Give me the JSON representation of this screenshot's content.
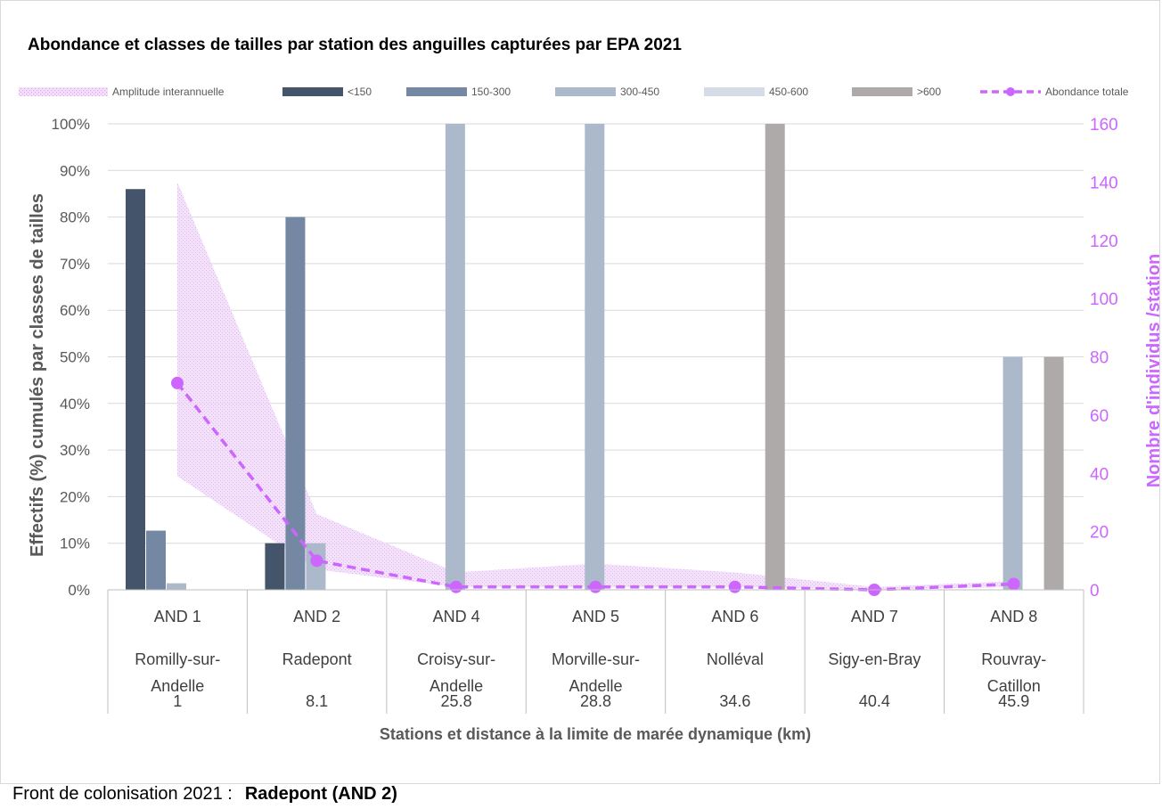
{
  "chart_data": {
    "type": "bar",
    "title": "Abondance et classes de tailles par station des anguilles capturées par EPA 2021",
    "xlabel": "Stations et distance à la limite de marée dynamique (km)",
    "ylabel_left": "Effectifs (%) cumulés par classes de tailles",
    "ylabel_right": "Nombre d'individus /station",
    "ylim_left": [
      0,
      100
    ],
    "ylim_right": [
      0,
      160
    ],
    "left_ticks": [
      "0%",
      "10%",
      "20%",
      "30%",
      "40%",
      "50%",
      "60%",
      "70%",
      "80%",
      "90%",
      "100%"
    ],
    "right_ticks": [
      "0",
      "20",
      "40",
      "60",
      "80",
      "100",
      "120",
      "140",
      "160"
    ],
    "grid": true,
    "legend_position": "top",
    "legend": [
      {
        "label": "Amplitude interannuelle",
        "kind": "area",
        "color": "#e9c6f5"
      },
      {
        "label": "<150",
        "kind": "bar",
        "color": "#44546a"
      },
      {
        "label": "150-300",
        "kind": "bar",
        "color": "#7588a3"
      },
      {
        "label": "300-450",
        "kind": "bar",
        "color": "#acb9ca"
      },
      {
        "label": "450-600",
        "kind": "bar",
        "color": "#d6dce5"
      },
      {
        "label": ">600",
        "kind": "bar",
        "color": "#aeaaaa"
      },
      {
        "label": "Abondance totale",
        "kind": "line",
        "color": "#cc66ff"
      }
    ],
    "categories": [
      {
        "code": "AND 1",
        "name": [
          "Romilly-sur-",
          "Andelle"
        ],
        "distance": "1"
      },
      {
        "code": "AND 2",
        "name": [
          "Radepont"
        ],
        "distance": "8.1"
      },
      {
        "code": "AND 4",
        "name": [
          "Croisy-sur-",
          "Andelle"
        ],
        "distance": "25.8"
      },
      {
        "code": "AND 5",
        "name": [
          "Morville-sur-",
          "Andelle"
        ],
        "distance": "28.8"
      },
      {
        "code": "AND 6",
        "name": [
          "Nolléval"
        ],
        "distance": "34.6"
      },
      {
        "code": "AND 7",
        "name": [
          "Sigy-en-Bray"
        ],
        "distance": "40.4"
      },
      {
        "code": "AND 8",
        "name": [
          "Rouvray-",
          "Catillon"
        ],
        "distance": "45.9"
      }
    ],
    "series": [
      {
        "name": "<150",
        "color": "#44546a",
        "values": [
          86,
          10,
          0,
          0,
          0,
          0,
          0
        ]
      },
      {
        "name": "150-300",
        "color": "#7588a3",
        "values": [
          12.7,
          80,
          0,
          0,
          0,
          0,
          0
        ]
      },
      {
        "name": "300-450",
        "color": "#acb9ca",
        "values": [
          1.4,
          10,
          100,
          100,
          0,
          0,
          50
        ]
      },
      {
        "name": "450-600",
        "color": "#d6dce5",
        "values": [
          0,
          0,
          0,
          0,
          0,
          0,
          0
        ]
      },
      {
        "name": ">600",
        "color": "#aeaaaa",
        "values": [
          0,
          0,
          0,
          0,
          100,
          0,
          50
        ]
      }
    ],
    "abondance_totale": {
      "name": "Abondance totale",
      "color": "#cc66ff",
      "values": [
        71,
        10,
        1,
        1,
        1,
        0,
        2
      ]
    },
    "amplitude_interannuelle": {
      "name": "Amplitude interannuelle",
      "color": "#e9c6f5",
      "min": [
        39,
        7,
        1,
        1,
        1,
        0,
        1
      ],
      "max": [
        140,
        26,
        6,
        9,
        6,
        1,
        3
      ]
    }
  },
  "footer": {
    "label": "Front de colonisation 2021 :",
    "value": "Radepont (AND 2)"
  }
}
